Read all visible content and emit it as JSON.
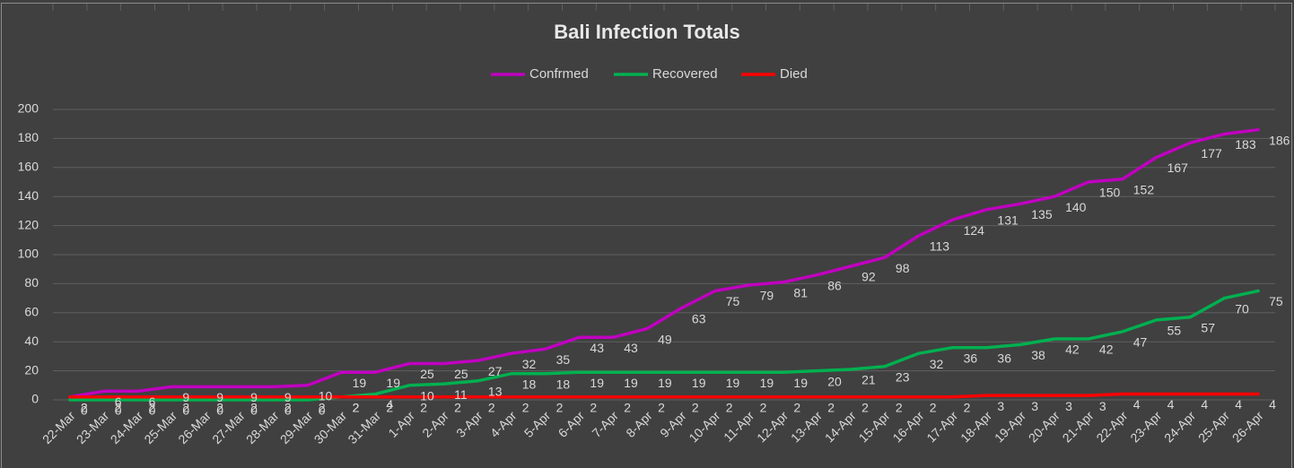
{
  "chart_data": {
    "type": "line",
    "title": "Bali Infection Totals",
    "categories": [
      "22-Mar",
      "23-Mar",
      "24-Mar",
      "25-Mar",
      "26-Mar",
      "27-Mar",
      "28-Mar",
      "29-Mar",
      "30-Mar",
      "31-Mar",
      "1-Apr",
      "2-Apr",
      "3-Apr",
      "4-Apr",
      "5-Apr",
      "6-Apr",
      "7-Apr",
      "8-Apr",
      "9-Apr",
      "10-Apr",
      "11-Apr",
      "12-Apr",
      "13-Apr",
      "14-Apr",
      "15-Apr",
      "16-Apr",
      "17-Apr",
      "18-Apr",
      "19-Apr",
      "20-Apr",
      "21-Apr",
      "22-Apr",
      "23-Apr",
      "24-Apr",
      "25-Apr",
      "26-Apr"
    ],
    "series": [
      {
        "name": "Confrmed",
        "color": "#c000c0",
        "values": [
          2,
          6,
          6,
          9,
          9,
          9,
          9,
          10,
          19,
          19,
          25,
          25,
          27,
          32,
          35,
          43,
          43,
          49,
          63,
          75,
          79,
          81,
          86,
          92,
          98,
          113,
          124,
          131,
          135,
          140,
          150,
          152,
          167,
          177,
          183,
          186
        ]
      },
      {
        "name": "Recovered",
        "color": "#00b050",
        "values": [
          0,
          0,
          0,
          0,
          0,
          0,
          0,
          0,
          2,
          4,
          10,
          11,
          13,
          18,
          18,
          19,
          19,
          19,
          19,
          19,
          19,
          19,
          20,
          21,
          23,
          32,
          36,
          36,
          38,
          42,
          42,
          47,
          55,
          57,
          70,
          75
        ]
      },
      {
        "name": "Died",
        "color": "#ff0000",
        "values": [
          2,
          2,
          2,
          2,
          2,
          2,
          2,
          2,
          2,
          2,
          2,
          2,
          2,
          2,
          2,
          2,
          2,
          2,
          2,
          2,
          2,
          2,
          2,
          2,
          2,
          2,
          2,
          3,
          3,
          3,
          3,
          4,
          4,
          4,
          4,
          4
        ]
      }
    ],
    "ylim": [
      0,
      200
    ],
    "yticks": [
      0,
      20,
      40,
      60,
      80,
      100,
      120,
      140,
      160,
      180,
      200
    ],
    "grid": true,
    "legend": "top"
  }
}
